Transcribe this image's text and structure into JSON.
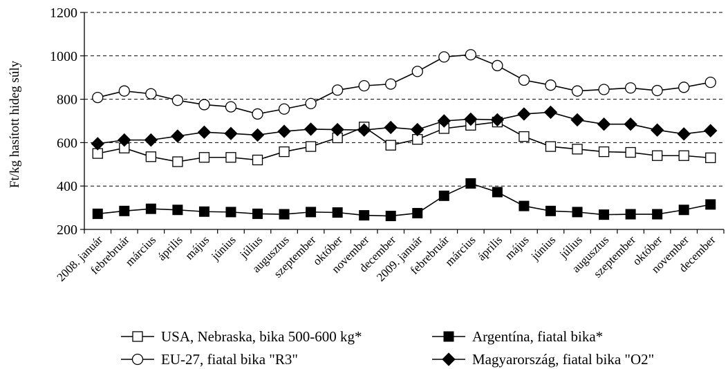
{
  "chart_data": {
    "type": "line",
    "title": "",
    "xlabel": "",
    "ylabel": "Ft/kg hasított hideg súly",
    "ylim": [
      200,
      1200
    ],
    "yticks": [
      200,
      400,
      600,
      800,
      1000,
      1200
    ],
    "grid": true,
    "legend_position": "bottom",
    "categories": [
      "2008. január",
      "febrebruár",
      "március",
      "április",
      "május",
      "június",
      "július",
      "augusztus",
      "szeptember",
      "október",
      "november",
      "december",
      "2009. január",
      "febrebruár",
      "március",
      "április",
      "május",
      "június",
      "július",
      "augusztus",
      "szeptember",
      "október",
      "november",
      "december"
    ],
    "series": [
      {
        "name": "USA, Nebraska, bika 500-600 kg*",
        "marker": "square-open",
        "color": "#000000",
        "values": [
          550,
          575,
          535,
          512,
          532,
          532,
          520,
          558,
          582,
          622,
          672,
          588,
          615,
          665,
          680,
          695,
          628,
          582,
          570,
          558,
          555,
          540,
          540,
          530
        ]
      },
      {
        "name": "EU-27, fiatal bika \"R3\"",
        "marker": "circle-open",
        "color": "#000000",
        "values": [
          808,
          838,
          825,
          795,
          775,
          765,
          732,
          755,
          780,
          842,
          862,
          870,
          928,
          995,
          1005,
          955,
          888,
          865,
          838,
          845,
          852,
          840,
          855,
          878
        ]
      },
      {
        "name": "Argentína, fiatal bika*",
        "marker": "square-filled",
        "color": "#000000",
        "values": [
          272,
          285,
          295,
          290,
          282,
          280,
          272,
          270,
          280,
          278,
          265,
          262,
          275,
          355,
          412,
          372,
          308,
          285,
          280,
          268,
          270,
          270,
          290,
          315
        ]
      },
      {
        "name": "Magyarország, fiatal bika \"O2\"",
        "marker": "diamond-filled",
        "color": "#000000",
        "values": [
          595,
          612,
          612,
          630,
          648,
          642,
          635,
          652,
          662,
          660,
          658,
          670,
          660,
          700,
          708,
          705,
          732,
          740,
          705,
          685,
          685,
          658,
          640,
          655
        ]
      }
    ]
  }
}
